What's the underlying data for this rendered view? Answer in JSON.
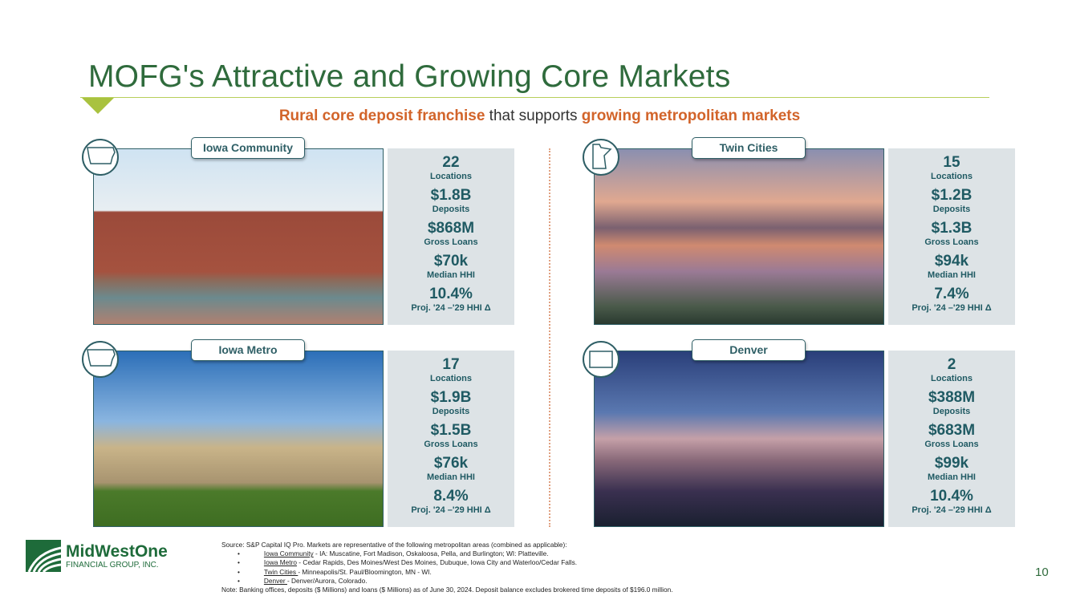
{
  "title": "MOFG's Attractive and Growing Core Markets",
  "subtitle": {
    "part1": "Rural core deposit franchise",
    "part2": " that supports ",
    "part3": "growing metropolitan markets"
  },
  "markets": [
    {
      "name": "Iowa Community",
      "icon": "iowa-map-icon",
      "locations": "22",
      "locations_label": "Locations",
      "deposits": "$1.8B",
      "deposits_label": "Deposits",
      "loans": "$868M",
      "loans_label": "Gross Loans",
      "hhi": "$70k",
      "hhi_label": "Median HHI",
      "proj": "10.4%",
      "proj_label": "Proj. '24 –'29 HHI Δ"
    },
    {
      "name": "Twin Cities",
      "icon": "minnesota-map-icon",
      "locations": "15",
      "locations_label": "Locations",
      "deposits": "$1.2B",
      "deposits_label": "Deposits",
      "loans": "$1.3B",
      "loans_label": "Gross Loans",
      "hhi": "$94k",
      "hhi_label": "Median HHI",
      "proj": "7.4%",
      "proj_label": "Proj. '24 –'29 HHI Δ"
    },
    {
      "name": "Iowa Metro",
      "icon": "iowa-map-icon",
      "locations": "17",
      "locations_label": "Locations",
      "deposits": "$1.9B",
      "deposits_label": "Deposits",
      "loans": "$1.5B",
      "loans_label": "Gross Loans",
      "hhi": "$76k",
      "hhi_label": "Median HHI",
      "proj": "8.4%",
      "proj_label": "Proj. '24 –'29 HHI Δ"
    },
    {
      "name": "Denver",
      "icon": "colorado-map-icon",
      "locations": "2",
      "locations_label": "Locations",
      "deposits": "$388M",
      "deposits_label": "Deposits",
      "loans": "$683M",
      "loans_label": "Gross Loans",
      "hhi": "$99k",
      "hhi_label": "Median HHI",
      "proj": "10.4%",
      "proj_label": "Proj. '24 –'29 HHI Δ"
    }
  ],
  "footnote": {
    "source": "Source: S&P Capital IQ Pro. Markets are representative of the following metropolitan areas (combined as applicable):",
    "bullets": [
      {
        "term": "Iowa Community",
        "text": " - IA: Muscatine, Fort Madison, Oskaloosa, Pella, and Burlington; WI: Platteville."
      },
      {
        "term": "Iowa Metro",
        "text": " - Cedar Rapids, Des Moines/West Des Moines, Dubuque, Iowa City and Waterloo/Cedar Falls."
      },
      {
        "term": "Twin Cities ",
        "text": "- Minneapolis/St. Paul/Bloomington, MN - WI."
      },
      {
        "term": "Denver ",
        "text": "- Denver/Aurora, Colorado."
      }
    ],
    "note": "Note: Banking offices, deposits ($ Millions) and loans ($ Millions) as of June 30, 2024. Deposit balance excludes brokered time deposits of $196.0 million."
  },
  "logo": {
    "name": "MidWestOne",
    "sub": "FINANCIAL GROUP, INC."
  },
  "page_number": "10",
  "colors": {
    "title": "#2f6b3c",
    "accent": "#d2642a",
    "stat_text": "#1f5a63",
    "stat_bg": "#dde3e6"
  }
}
